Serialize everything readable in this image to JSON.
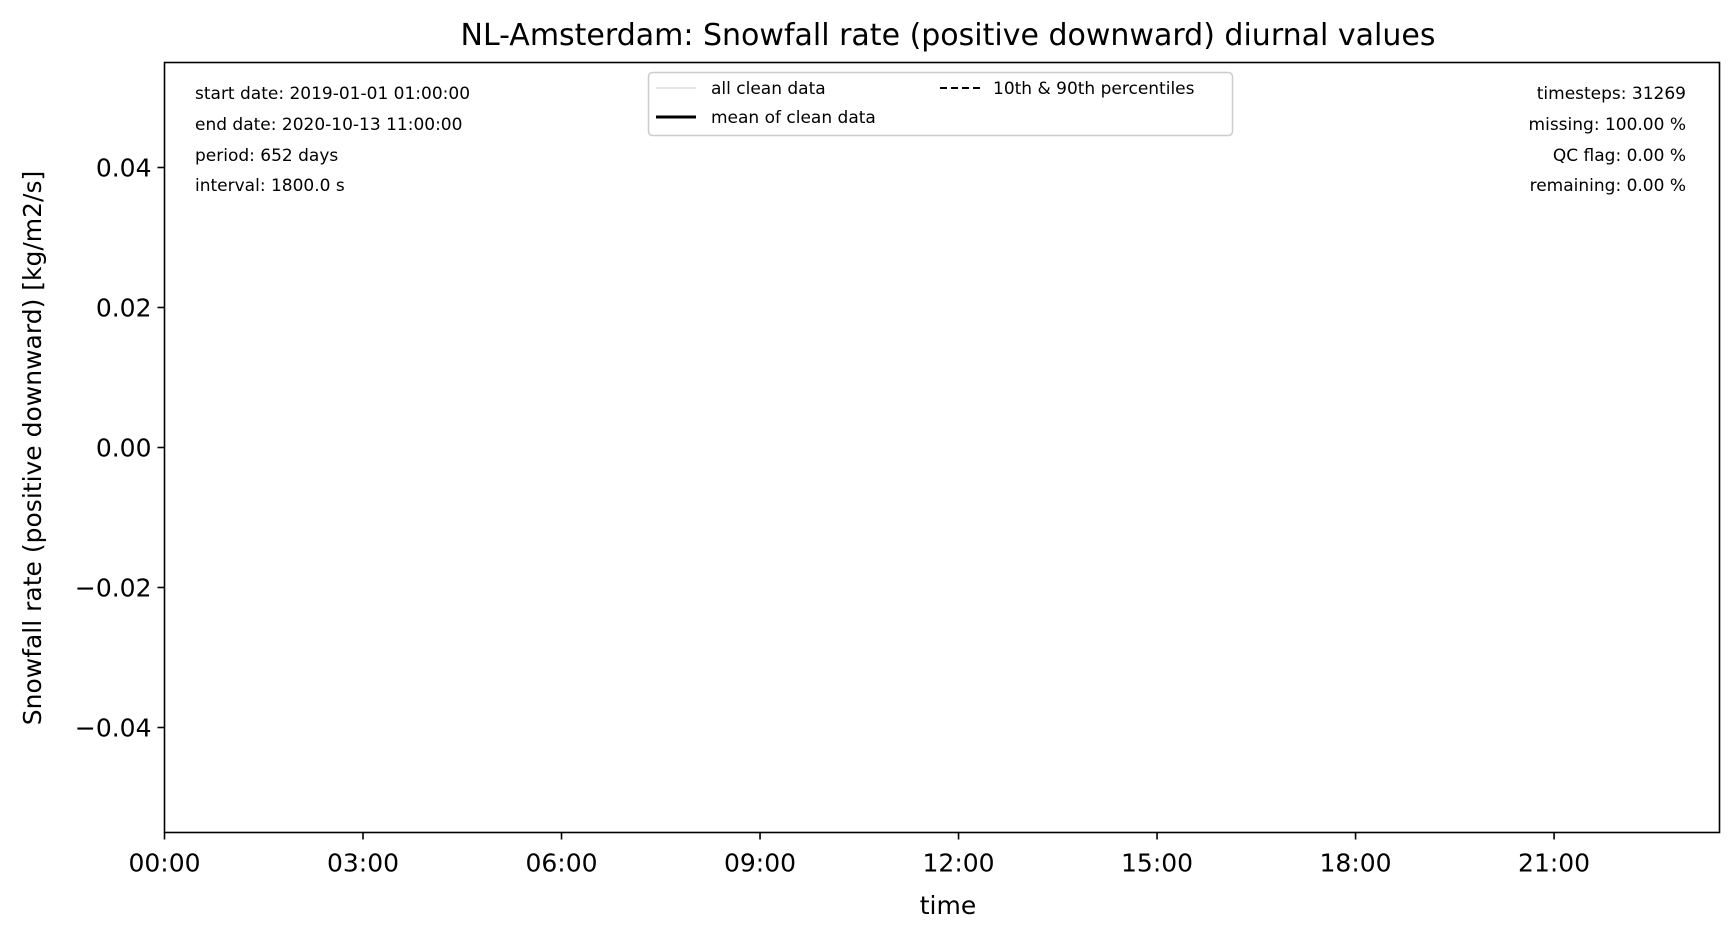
{
  "chart_data": {
    "type": "line",
    "title": "NL-Amsterdam: Snowfall rate (positive downward) diurnal values",
    "xlabel": "time",
    "ylabel": "Snowfall rate (positive downward) [kg/m2/s]",
    "x_tick_labels": [
      "00:00",
      "03:00",
      "06:00",
      "09:00",
      "12:00",
      "15:00",
      "18:00",
      "21:00"
    ],
    "x_tick_hours": [
      0,
      3,
      6,
      9,
      12,
      15,
      18,
      21
    ],
    "xlim_hours": [
      0,
      23.5
    ],
    "y_ticks": [
      0.04,
      0.02,
      0.0,
      -0.02,
      -0.04
    ],
    "y_tick_labels": [
      "0.04",
      "0.02",
      "0.00",
      "−0.02",
      "−0.04"
    ],
    "ylim": [
      -0.055,
      0.055
    ],
    "grid": false,
    "legend_position": "top-center",
    "legend": [
      {
        "label": "all clean data",
        "style": "thin-light-gray"
      },
      {
        "label": "10th & 90th percentiles",
        "style": "dashed-black"
      },
      {
        "label": "mean of clean data",
        "style": "solid-thick-black"
      }
    ],
    "series": [
      {
        "name": "all clean data",
        "values": []
      },
      {
        "name": "mean of clean data",
        "values": []
      },
      {
        "name": "10th & 90th percentiles",
        "values": []
      }
    ],
    "info_left": [
      "start date: 2019-01-01 01:00:00",
      "end date: 2020-10-13 11:00:00",
      "period: 652 days",
      "interval: 1800.0 s"
    ],
    "info_right": [
      "timesteps: 31269",
      "missing: 100.00 %",
      "QC flag: 0.00 %",
      "remaining: 0.00 %"
    ],
    "colors": {
      "axes": "#000000",
      "all_clean": "#d3d3d3",
      "mean": "#000000",
      "percentiles": "#000000",
      "legend_border": "#cccccc"
    }
  }
}
